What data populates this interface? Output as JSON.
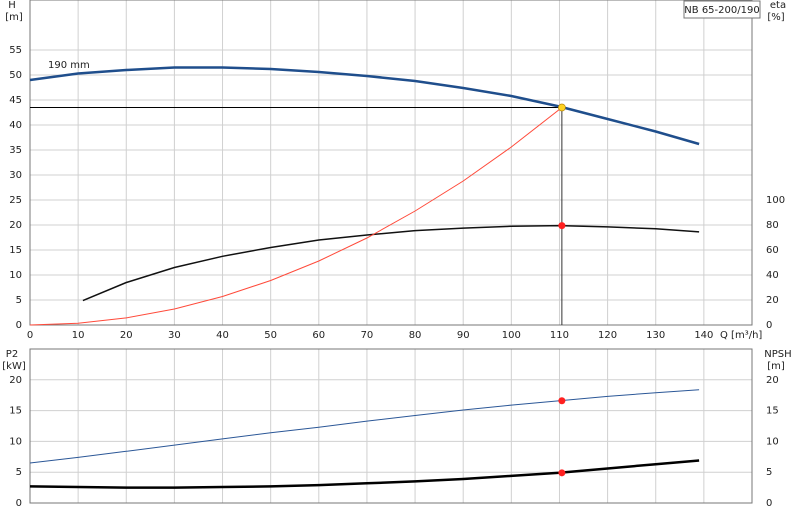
{
  "chart_data": [
    {
      "type": "line",
      "ylabel": "H",
      "yunit": "[m]",
      "y2label": "eta",
      "y2unit": "[%]",
      "xlabel": "Q [m³/h]",
      "model": "NB 65-200/190",
      "annotation": "190 mm",
      "xlim": [
        0,
        150
      ],
      "xticks": [
        0,
        10,
        20,
        30,
        40,
        50,
        60,
        70,
        80,
        90,
        100,
        110,
        120,
        130,
        140
      ],
      "ylim": [
        0,
        65
      ],
      "yticks": [
        0,
        5,
        10,
        15,
        20,
        25,
        30,
        35,
        40,
        45,
        50,
        55
      ],
      "y2lim": [
        0,
        260
      ],
      "y2ticks": [
        0,
        20,
        40,
        60,
        80,
        100
      ],
      "grid": true,
      "duty_lines": true,
      "series": [
        {
          "color": "#1f4e8c",
          "width": 2.5,
          "x": [
            0,
            10,
            20,
            30,
            40,
            50,
            60,
            70,
            80,
            90,
            100,
            110,
            120,
            130,
            139
          ],
          "values": [
            49,
            50.3,
            51,
            51.5,
            51.5,
            51.2,
            50.6,
            49.8,
            48.8,
            47.4,
            45.8,
            43.7,
            41.2,
            38.7,
            36.2
          ]
        },
        {
          "color": "#111111",
          "width": 1.5,
          "axis": "y2",
          "x": [
            11,
            20,
            30,
            40,
            50,
            60,
            70,
            80,
            90,
            100,
            110,
            120,
            130,
            139
          ],
          "values": [
            19.5,
            34,
            46,
            55,
            62,
            68,
            72,
            75.5,
            77.5,
            79,
            79.5,
            78.5,
            77,
            74.5
          ]
        },
        {
          "color": "#ff4a3a",
          "width": 1,
          "x": [
            0,
            10,
            20,
            30,
            40,
            50,
            60,
            70,
            80,
            90,
            100,
            110.5
          ],
          "values": [
            0,
            0.36,
            1.42,
            3.2,
            5.7,
            8.9,
            12.8,
            17.4,
            22.8,
            28.8,
            35.6,
            43.5
          ]
        }
      ],
      "points": [
        {
          "x": 110.5,
          "y": 43.5,
          "color": "#ffd21f"
        },
        {
          "x": 110.5,
          "y": 79.5,
          "axis": "y2",
          "color": "#ff2020"
        }
      ]
    },
    {
      "type": "line",
      "ylabel": "P2",
      "yunit": "[kW]",
      "y2label": "NPSH",
      "y2unit": "[m]",
      "xlim": [
        0,
        150
      ],
      "ylim": [
        0,
        25
      ],
      "yticks": [
        0,
        5,
        10,
        15,
        20
      ],
      "y2lim": [
        0,
        25
      ],
      "y2ticks": [
        0,
        5,
        10,
        15,
        20
      ],
      "grid": true,
      "series": [
        {
          "color": "#2b5797",
          "width": 1,
          "x": [
            0,
            10,
            20,
            30,
            40,
            50,
            60,
            70,
            80,
            90,
            100,
            110,
            120,
            130,
            139
          ],
          "values": [
            6.5,
            7.4,
            8.4,
            9.4,
            10.4,
            11.4,
            12.3,
            13.3,
            14.2,
            15.1,
            15.9,
            16.6,
            17.3,
            17.9,
            18.4
          ]
        },
        {
          "color": "#000000",
          "width": 2.5,
          "axis": "y2",
          "x": [
            0,
            10,
            20,
            30,
            40,
            50,
            60,
            70,
            80,
            90,
            100,
            110,
            120,
            130,
            139
          ],
          "values": [
            2.7,
            2.6,
            2.5,
            2.5,
            2.6,
            2.7,
            2.9,
            3.2,
            3.5,
            3.9,
            4.4,
            4.9,
            5.6,
            6.3,
            6.9
          ]
        }
      ],
      "points": [
        {
          "x": 110.5,
          "y": 16.6,
          "color": "#ff2020"
        },
        {
          "x": 110.5,
          "y": 4.9,
          "axis": "y2",
          "color": "#ff2020"
        }
      ]
    }
  ]
}
